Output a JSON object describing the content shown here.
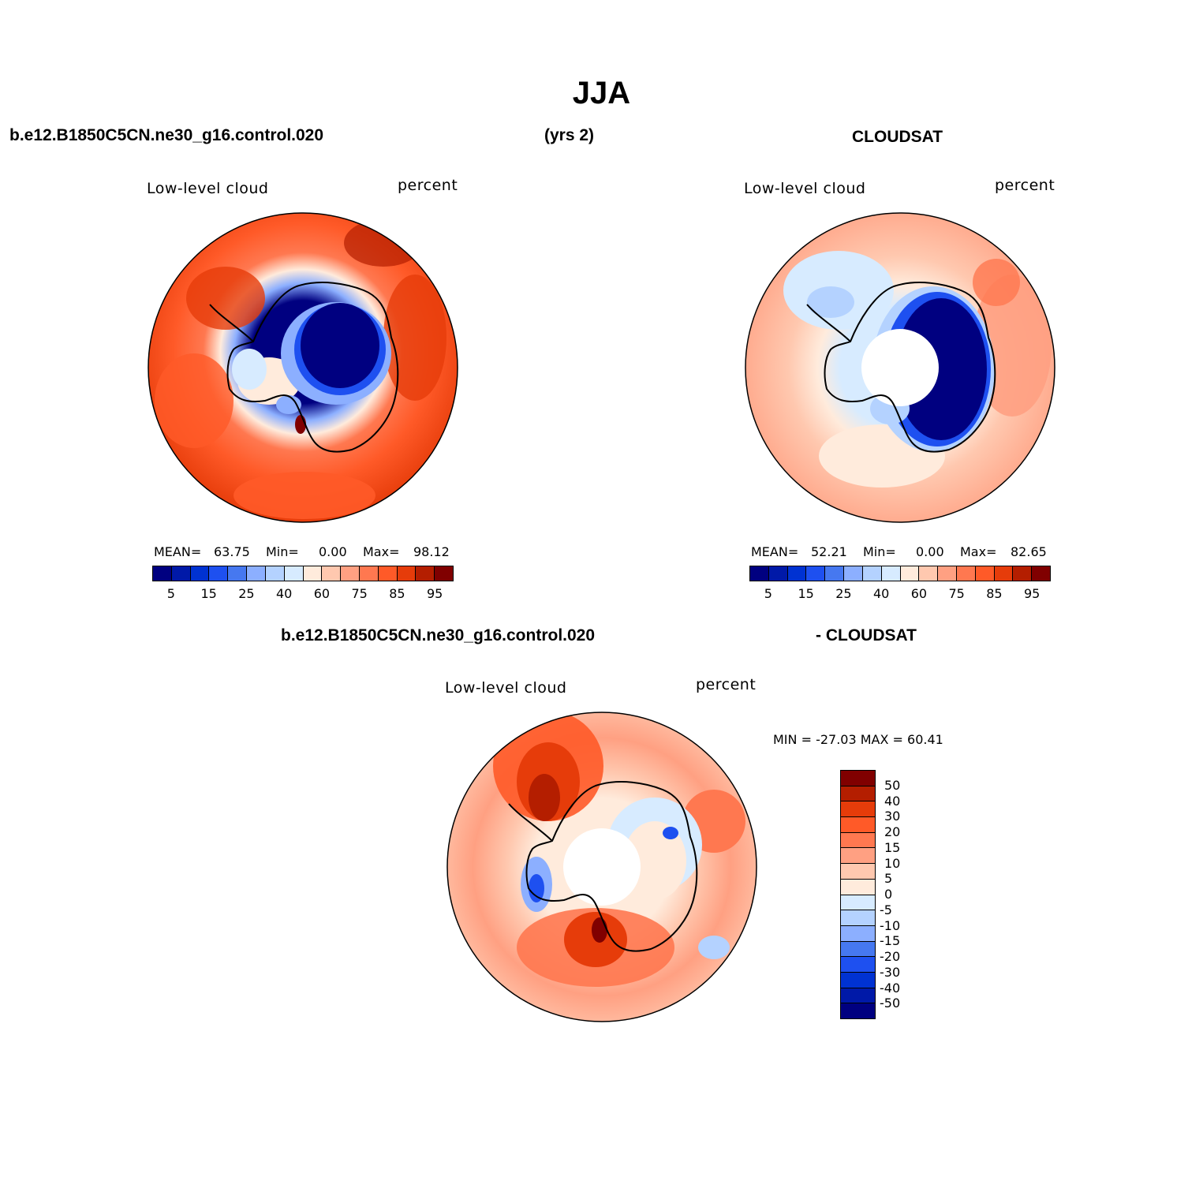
{
  "title": "JJA",
  "header": {
    "case_name": "b.e12.B1850C5CN.ne30_g16.control.020",
    "years": "(yrs 2)",
    "obs_name": "CLOUDSAT",
    "diff_left": "b.e12.B1850C5CN.ne30_g16.control.020",
    "diff_right": "- CLOUDSAT"
  },
  "panels": {
    "model": {
      "left_label": "Low-level cloud",
      "right_label": "percent",
      "mean_label": "MEAN=",
      "mean_value": "63.75",
      "min_label": "Min=",
      "min_value": "0.00",
      "max_label": "Max=",
      "max_value": "98.12"
    },
    "obs": {
      "left_label": "Low-level cloud",
      "right_label": "percent",
      "mean_label": "MEAN=",
      "mean_value": "52.21",
      "min_label": "Min=",
      "min_value": "0.00",
      "max_label": "Max=",
      "max_value": "82.65"
    },
    "diff": {
      "left_label": "Low-level cloud",
      "right_label": "percent",
      "minmax_text": "MIN = -27.03 MAX =  60.41"
    }
  },
  "colorbar_abs": {
    "colors": [
      "#000080",
      "#0019a8",
      "#0032d2",
      "#1e50f0",
      "#4678f0",
      "#8cafff",
      "#b4d2ff",
      "#d7ebff",
      "#ffebdc",
      "#ffc8af",
      "#ffa082",
      "#ff7850",
      "#ff5a28",
      "#e63c0a",
      "#b41e00",
      "#800000"
    ],
    "tick_labels": [
      "5",
      "15",
      "25",
      "40",
      "60",
      "75",
      "85",
      "95"
    ]
  },
  "colorbar_diff": {
    "colors": [
      "#800000",
      "#b41e00",
      "#e63c0a",
      "#ff5a28",
      "#ff7850",
      "#ffa082",
      "#ffc8af",
      "#ffebdc",
      "#d7ebff",
      "#b4d2ff",
      "#8cafff",
      "#4678f0",
      "#1e50f0",
      "#0032d2",
      "#0019a8",
      "#000080"
    ],
    "tick_labels": [
      "50",
      "40",
      "30",
      "20",
      "15",
      "10",
      "5",
      "0",
      "-5",
      "-10",
      "-15",
      "-20",
      "-30",
      "-40",
      "-50"
    ]
  }
}
